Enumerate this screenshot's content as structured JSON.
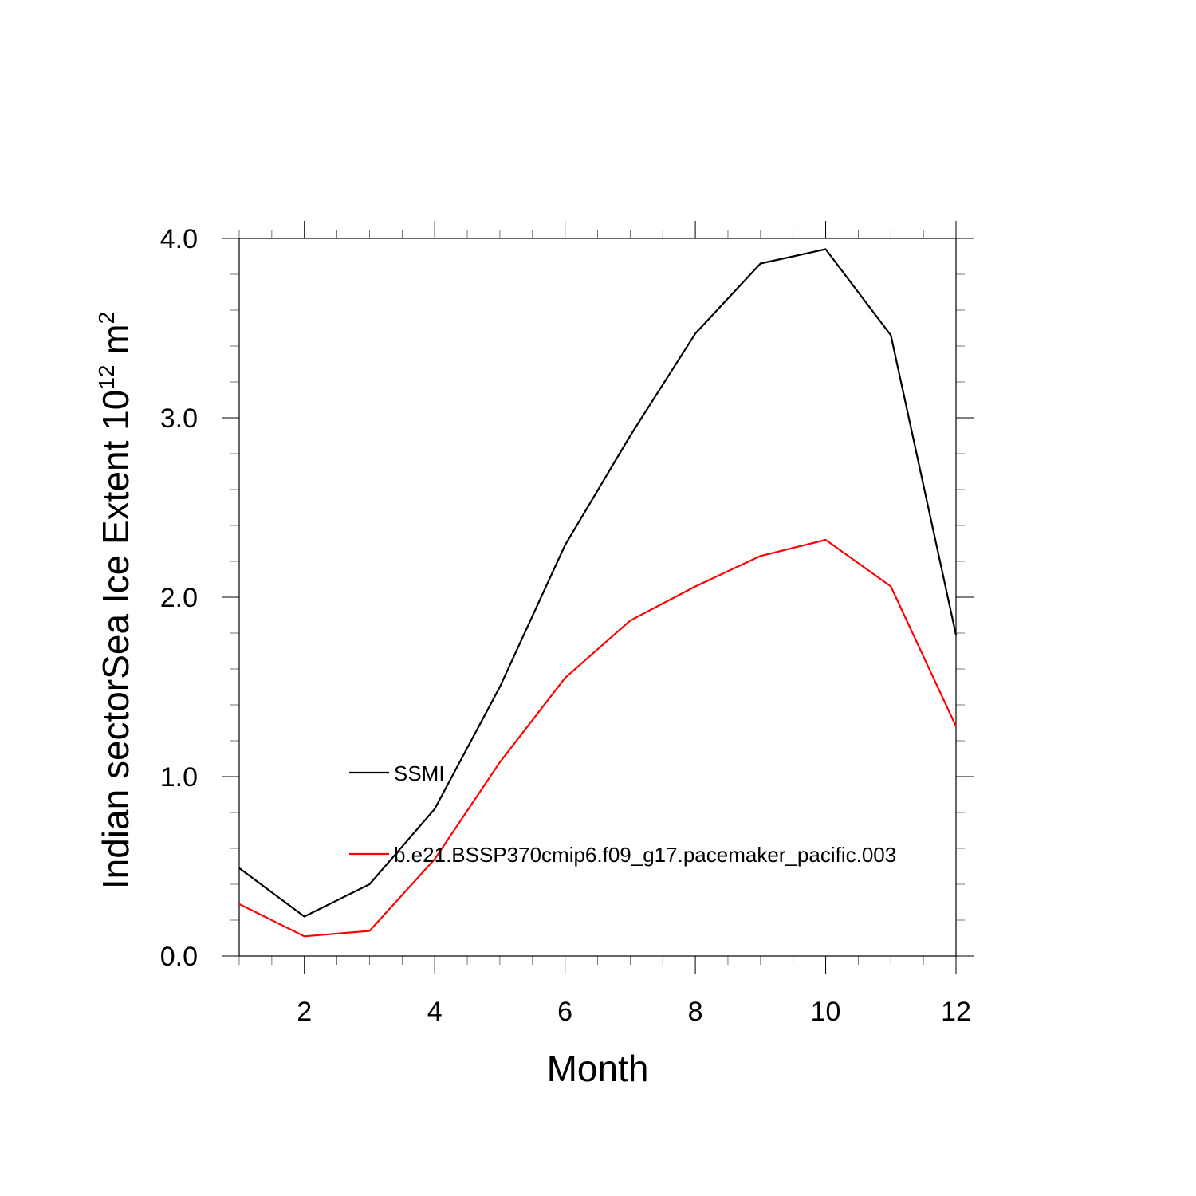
{
  "chart_data": {
    "type": "line",
    "xlabel": "Month",
    "ylabel": "Indian sectorSea Ice Extent 10",
    "ylabel_exponent": "12",
    "ylabel_unit": " m",
    "ylabel_unit_exponent": "2",
    "xlim": [
      1,
      12
    ],
    "ylim": [
      0,
      4
    ],
    "x_ticks": [
      2,
      4,
      6,
      8,
      10,
      12
    ],
    "x_tick_labels": [
      "2",
      "4",
      "6",
      "8",
      "10",
      "12"
    ],
    "y_ticks": [
      0,
      1,
      2,
      3,
      4
    ],
    "y_tick_labels": [
      "0.0",
      "1.0",
      "2.0",
      "3.0",
      "4.0"
    ],
    "x": [
      1,
      2,
      3,
      4,
      5,
      6,
      7,
      8,
      9,
      10,
      11,
      12
    ],
    "series": [
      {
        "name": "SSMI",
        "color": "#000000",
        "values": [
          0.49,
          0.22,
          0.4,
          0.82,
          1.5,
          2.29,
          2.9,
          3.47,
          3.86,
          3.94,
          3.46,
          1.79
        ]
      },
      {
        "name": "b.e21.BSSP370cmip6.f09_g17.pacemaker_pacific.003",
        "color": "#ff0000",
        "values": [
          0.29,
          0.11,
          0.14,
          0.54,
          1.08,
          1.55,
          1.87,
          2.06,
          2.23,
          2.32,
          2.06,
          1.28
        ]
      }
    ],
    "legend_position": "center"
  }
}
